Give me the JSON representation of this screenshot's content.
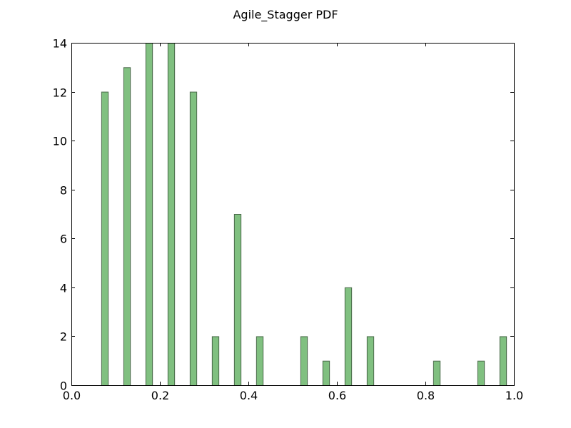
{
  "chart_data": {
    "type": "bar",
    "title": "Agile_Stagger PDF",
    "xlabel": "",
    "ylabel": "",
    "xlim": [
      0.0,
      1.0
    ],
    "ylim": [
      0,
      14
    ],
    "x_ticks": [
      "0.0",
      "0.2",
      "0.4",
      "0.6",
      "0.8",
      "1.0"
    ],
    "y_ticks": [
      "0",
      "2",
      "4",
      "6",
      "8",
      "10",
      "12",
      "14"
    ],
    "bar_width": 0.015,
    "grid": false,
    "bar_color": "#80c080",
    "bar_edge_color": "#4a6a4a",
    "bars": [
      {
        "x": 0.075,
        "y": 12
      },
      {
        "x": 0.125,
        "y": 13
      },
      {
        "x": 0.175,
        "y": 14
      },
      {
        "x": 0.225,
        "y": 14
      },
      {
        "x": 0.275,
        "y": 12
      },
      {
        "x": 0.325,
        "y": 2
      },
      {
        "x": 0.375,
        "y": 7
      },
      {
        "x": 0.425,
        "y": 2
      },
      {
        "x": 0.525,
        "y": 2
      },
      {
        "x": 0.575,
        "y": 1
      },
      {
        "x": 0.625,
        "y": 4
      },
      {
        "x": 0.675,
        "y": 2
      },
      {
        "x": 0.825,
        "y": 1
      },
      {
        "x": 0.925,
        "y": 1
      },
      {
        "x": 0.975,
        "y": 2
      }
    ]
  }
}
